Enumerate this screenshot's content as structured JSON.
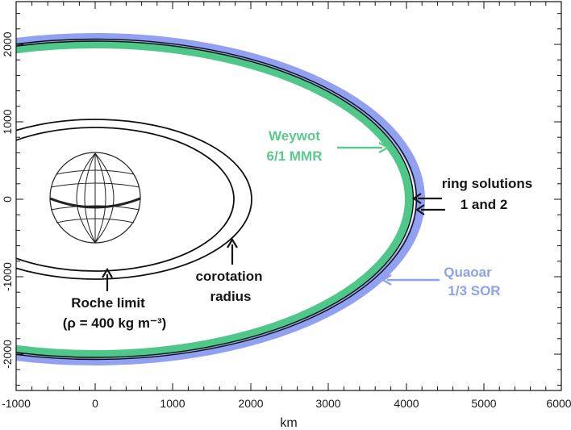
{
  "figure": {
    "xlabel": "km",
    "x_ticks": [
      "-1000",
      "0",
      "1000",
      "2000",
      "3000",
      "4000",
      "5000",
      "6000"
    ],
    "y_ticks": [
      "2000",
      "1000",
      "0",
      "-1000",
      "-2000"
    ],
    "xlim": [
      -1000,
      6000
    ],
    "ylim": [
      -2600,
      2400
    ]
  },
  "annotations": {
    "weywot": {
      "line1": "Weywot",
      "line2": "6/1 MMR",
      "color": "#5cc98f"
    },
    "ring": {
      "line1": "ring solutions",
      "line2": "1 and 2",
      "color": "#141414"
    },
    "quaoar": {
      "line1": "Quaoar",
      "line2": "1/3 SOR",
      "color": "#8ea2ea"
    },
    "corot": {
      "line1": "corotation",
      "line2": "radius"
    },
    "roche": {
      "line1": "Roche limit",
      "line2": "(ρ = 400 kg m⁻³)"
    }
  },
  "colors": {
    "weywot_band": "#4fc789",
    "quaoar_band": "#7f8ff0",
    "ring": "#111111"
  }
}
